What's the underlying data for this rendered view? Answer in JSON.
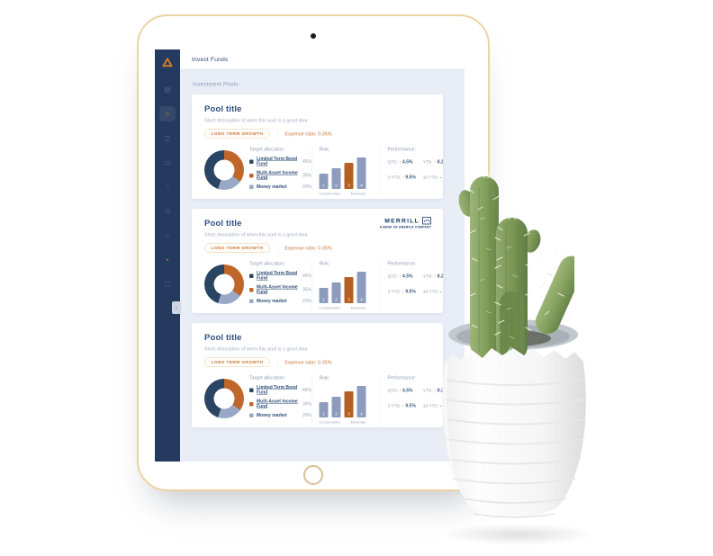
{
  "device": {
    "camera_icon": "camera-dot",
    "home_icon": "home-button"
  },
  "app": {
    "topbar": {
      "title": "Invest Funds"
    },
    "sidebar": {
      "logo_icon": "brand-triangle-knot-icon",
      "items": [
        {
          "name": "bank-icon",
          "glyph": "▤",
          "active": false,
          "accent": false
        },
        {
          "name": "home-icon",
          "glyph": "⌂",
          "active": true,
          "accent": false
        },
        {
          "name": "users-icon",
          "glyph": "◫",
          "active": false,
          "accent": false
        },
        {
          "name": "card-icon",
          "glyph": "▭",
          "active": false,
          "accent": false
        },
        {
          "name": "person-icon",
          "glyph": "◔",
          "active": false,
          "accent": false
        },
        {
          "name": "clock-icon",
          "glyph": "◷",
          "active": false,
          "accent": false
        },
        {
          "name": "settings-icon",
          "glyph": "○",
          "active": false,
          "accent": false
        },
        {
          "name": "notification-dot-icon",
          "glyph": "●",
          "active": false,
          "accent": true
        },
        {
          "name": "document-icon",
          "glyph": "▢",
          "active": false,
          "accent": false
        }
      ],
      "collapse_glyph": "‹"
    },
    "section_title": "Investment Pools:",
    "pools": [
      {
        "title": "Pool title",
        "description": "Short description of when this pool is a good idea",
        "tag": "LONG TERM GROWTH",
        "expense_label": "Expense ratio: 0.35%",
        "allocation": {
          "heading": "Target allocation:",
          "items": [
            {
              "label": "Limited Term Bond Fund",
              "value": "45%",
              "pct": 45,
              "color": "#2a4464",
              "link": true
            },
            {
              "label": "Multi-Asset Income Fund",
              "value": "35%",
              "pct": 35,
              "color": "#c1662a",
              "link": true
            },
            {
              "label": "Money market",
              "value": "20%",
              "pct": 20,
              "color": "#98a8c6",
              "link": false
            }
          ]
        },
        "risk": {
          "heading": "Risk:",
          "levels": [
            "1",
            "2",
            "3",
            "4"
          ],
          "selected": 3,
          "left_label": "Conservative",
          "right_label": "Moderate"
        },
        "performance": {
          "heading": "Performance:",
          "stats": [
            {
              "label": "QTD:",
              "dir": "up",
              "value": "4.5%"
            },
            {
              "label": "YTD:",
              "dir": "up",
              "value": "8.2%"
            },
            {
              "label": "3 YTD:",
              "dir": "up",
              "value": "9.5%"
            },
            {
              "label": "10 YTD:",
              "dir": "",
              "value": "-"
            }
          ]
        }
      },
      {
        "title": "Pool title",
        "description": "Short description of when this pool is a good idea",
        "tag": "LONG TERM GROWTH",
        "expense_label": "Expense ratio: 0.35%",
        "partner": {
          "name": "MERRILL",
          "subtitle": "A BANK OF AMERICA COMPANY",
          "bull_icon": "merrill-bull-icon"
        },
        "allocation": {
          "heading": "Target allocation:",
          "items": [
            {
              "label": "Limited Term Bond Fund",
              "value": "45%",
              "pct": 45,
              "color": "#2a4464",
              "link": true
            },
            {
              "label": "Multi-Asset Income Fund",
              "value": "35%",
              "pct": 35,
              "color": "#c1662a",
              "link": true
            },
            {
              "label": "Money market",
              "value": "20%",
              "pct": 20,
              "color": "#98a8c6",
              "link": false
            }
          ]
        },
        "risk": {
          "heading": "Risk:",
          "levels": [
            "1",
            "2",
            "3",
            "4"
          ],
          "selected": 3,
          "left_label": "Conservative",
          "right_label": "Moderate"
        },
        "performance": {
          "heading": "Performance:",
          "stats": [
            {
              "label": "QTD:",
              "dir": "up",
              "value": "4.5%"
            },
            {
              "label": "YTD:",
              "dir": "up",
              "value": "8.2%"
            },
            {
              "label": "3 YTD:",
              "dir": "up",
              "value": "9.5%"
            },
            {
              "label": "10 YTD:",
              "dir": "",
              "value": "-"
            }
          ]
        }
      },
      {
        "title": "Pool title",
        "description": "Short description of when this pool is a good idea",
        "tag": "LONG TERM GROWTH",
        "expense_label": "Expense ratio: 0.35%",
        "allocation": {
          "heading": "Target allocation:",
          "items": [
            {
              "label": "Limited Term Bond Fund",
              "value": "45%",
              "pct": 45,
              "color": "#2a4464",
              "link": true
            },
            {
              "label": "Multi-Asset Income Fund",
              "value": "35%",
              "pct": 35,
              "color": "#c1662a",
              "link": true
            },
            {
              "label": "Money market",
              "value": "20%",
              "pct": 20,
              "color": "#98a8c6",
              "link": false
            }
          ]
        },
        "risk": {
          "heading": "Risk:",
          "levels": [
            "1",
            "2",
            "3",
            "4"
          ],
          "selected": 3,
          "left_label": "Conservative",
          "right_label": "Moderate"
        },
        "performance": {
          "heading": "Performance:",
          "stats": [
            {
              "label": "QTD:",
              "dir": "up",
              "value": "4.5%"
            },
            {
              "label": "YTD:",
              "dir": "up",
              "value": "8.2%"
            },
            {
              "label": "3 YTD:",
              "dir": "up",
              "value": "9.5%"
            },
            {
              "label": "10 YTD:",
              "dir": "",
              "value": "-"
            }
          ]
        }
      }
    ]
  },
  "colors": {
    "accent_orange": "#c1662a",
    "navy": "#243a5e",
    "slate": "#8d9cbc",
    "content_bg": "#e9edf6",
    "tablet_border": "#ecd3a4"
  }
}
